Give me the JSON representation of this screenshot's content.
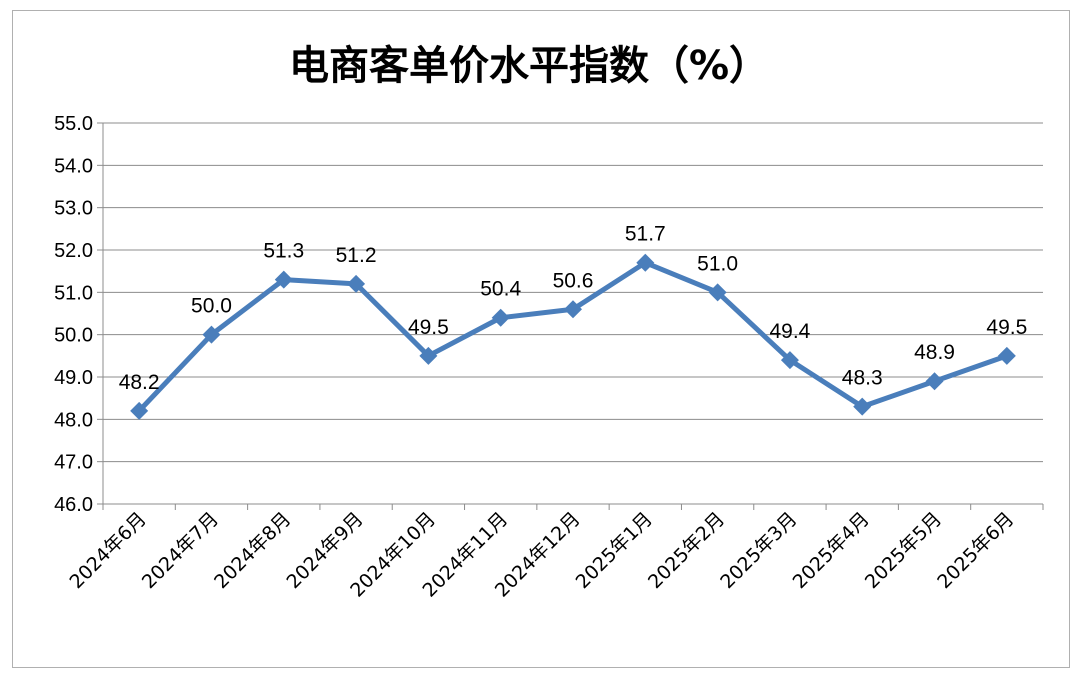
{
  "chart_data": {
    "type": "line",
    "title": "电商客单价水平指数（%）",
    "xlabel": "",
    "ylabel": "",
    "ylim": [
      46.0,
      55.0
    ],
    "ytick_step": 1.0,
    "yticks": [
      "46.0",
      "47.0",
      "48.0",
      "49.0",
      "50.0",
      "51.0",
      "52.0",
      "53.0",
      "54.0",
      "55.0"
    ],
    "grid": true,
    "legend": "none",
    "categories": [
      "2024年6月",
      "2024年7月",
      "2024年8月",
      "2024年9月",
      "2024年10月",
      "2024年11月",
      "2024年12月",
      "2025年1月",
      "2025年2月",
      "2025年3月",
      "2025年4月",
      "2025年5月",
      "2025年6月"
    ],
    "series": [
      {
        "values": [
          48.2,
          50.0,
          51.3,
          51.2,
          49.5,
          50.4,
          50.6,
          51.7,
          51.0,
          49.4,
          48.3,
          48.9,
          49.5
        ],
        "labels": [
          "48.2",
          "50.0",
          "51.3",
          "51.2",
          "49.5",
          "50.4",
          "50.6",
          "51.7",
          "51.0",
          "49.4",
          "48.3",
          "48.9",
          "49.5"
        ],
        "color": "#4a7ebb"
      }
    ]
  }
}
